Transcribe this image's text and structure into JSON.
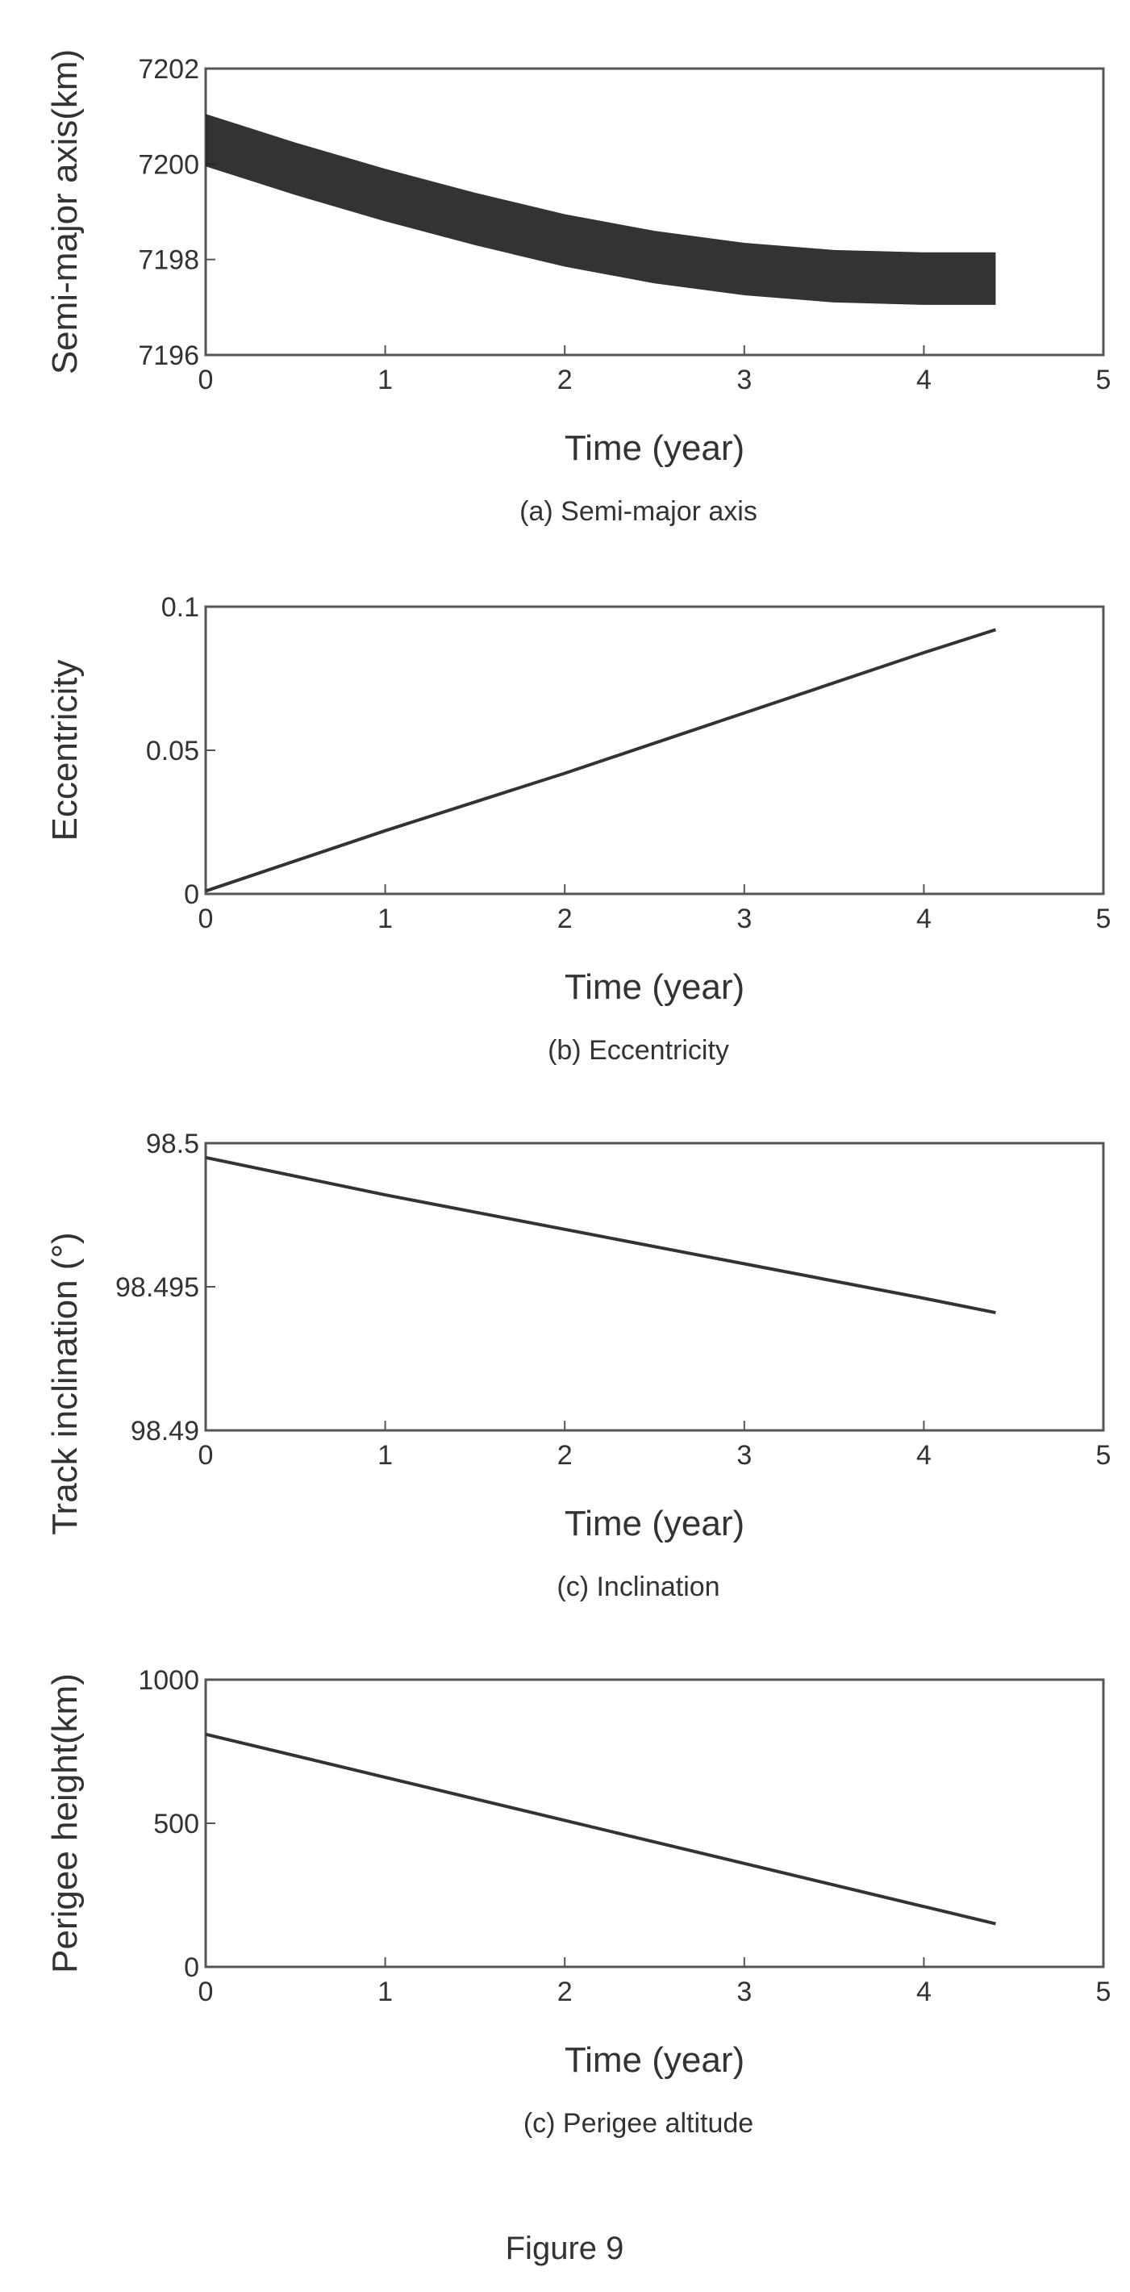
{
  "figure_title": "Figure 9",
  "chart_data": [
    {
      "type": "line",
      "title": "",
      "caption": "(a) Semi-major axis",
      "xlabel": "Time  (year)",
      "ylabel": "Semi-major axis(km)",
      "xlim": [
        0,
        5
      ],
      "ylim": [
        7196,
        7202
      ],
      "xticks": [
        "0",
        "1",
        "2",
        "3",
        "4",
        "5"
      ],
      "yticks": [
        "7196",
        "7198",
        "7200",
        "7202"
      ],
      "grid": false,
      "series": [
        {
          "x": [
            0,
            0.5,
            1,
            1.5,
            2,
            2.5,
            3,
            3.5,
            4,
            4.4
          ],
          "y": [
            7200.5,
            7199.9,
            7199.35,
            7198.85,
            7198.4,
            7198.05,
            7197.8,
            7197.65,
            7197.6,
            7197.6
          ],
          "band_halfwidth": 0.55,
          "color": "#222222"
        }
      ]
    },
    {
      "type": "line",
      "title": "",
      "caption": "(b) Eccentricity",
      "xlabel": "Time  (year)",
      "ylabel": "Eccentricity",
      "xlim": [
        0,
        5
      ],
      "ylim": [
        0,
        0.1
      ],
      "xticks": [
        "0",
        "1",
        "2",
        "3",
        "4",
        "5"
      ],
      "yticks": [
        "0",
        "0.05",
        "0.1"
      ],
      "grid": false,
      "series": [
        {
          "x": [
            0,
            1,
            2,
            3,
            4,
            4.4
          ],
          "y": [
            0.001,
            0.022,
            0.042,
            0.063,
            0.084,
            0.092
          ],
          "color": "#333333"
        }
      ]
    },
    {
      "type": "line",
      "title": "",
      "caption": "(c) Inclination",
      "xlabel": "Time  (year)",
      "ylabel": "Track inclination  (°)",
      "xlim": [
        0,
        5
      ],
      "ylim": [
        98.49,
        98.5
      ],
      "xticks": [
        "0",
        "1",
        "2",
        "3",
        "4",
        "5"
      ],
      "yticks": [
        "98.49",
        "98.495",
        "98.5"
      ],
      "grid": false,
      "series": [
        {
          "x": [
            0,
            1,
            2,
            3,
            4,
            4.4
          ],
          "y": [
            98.4995,
            98.4982,
            98.497,
            98.4958,
            98.4946,
            98.4941
          ],
          "color": "#333333"
        }
      ]
    },
    {
      "type": "line",
      "title": "",
      "caption": "(c) Perigee altitude",
      "xlabel": "Time  (year)",
      "ylabel": "Perigee height(km)",
      "xlim": [
        0,
        5
      ],
      "ylim": [
        0,
        1000
      ],
      "xticks": [
        "0",
        "1",
        "2",
        "3",
        "4",
        "5"
      ],
      "yticks": [
        "0",
        "500",
        "1000"
      ],
      "grid": false,
      "series": [
        {
          "x": [
            0,
            1,
            2,
            3,
            4,
            4.4
          ],
          "y": [
            810,
            660,
            510,
            360,
            210,
            150
          ],
          "color": "#333333"
        }
      ]
    }
  ]
}
